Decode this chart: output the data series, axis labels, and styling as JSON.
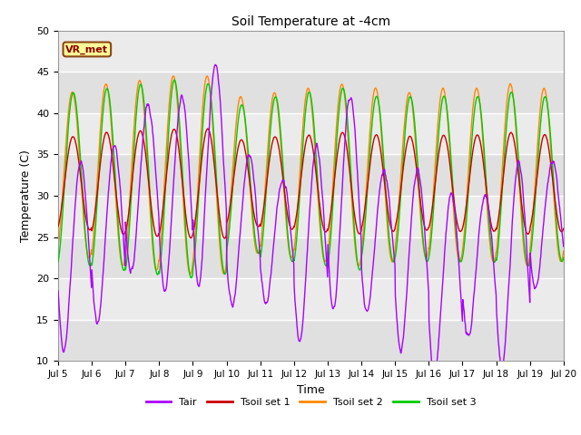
{
  "title": "Soil Temperature at -4cm",
  "xlabel": "Time",
  "ylabel": "Temperature (C)",
  "ylim": [
    10,
    50
  ],
  "annotation": "VR_met",
  "bg_color": "#dcdcdc",
  "bg_color_light": "#e8e8e8",
  "line_colors": {
    "Tair": "#aa00ff",
    "Tsoil1": "#cc0000",
    "Tsoil2": "#ff8800",
    "Tsoil3": "#00cc00"
  },
  "legend_labels": [
    "Tair",
    "Tsoil set 1",
    "Tsoil set 2",
    "Tsoil set 3"
  ],
  "tick_dates": [
    "Jul 5",
    "Jul 6",
    "Jul 7",
    "Jul 8",
    "Jul 9",
    "Jul 10",
    "Jul 11",
    "Jul 12",
    "Jul 13",
    "Jul 14",
    "Jul 15",
    "Jul 16",
    "Jul 17",
    "Jul 18",
    "Jul 19",
    "Jul 20"
  ],
  "days": 15,
  "n_points": 1440,
  "figsize": [
    6.4,
    4.8
  ],
  "dpi": 100
}
